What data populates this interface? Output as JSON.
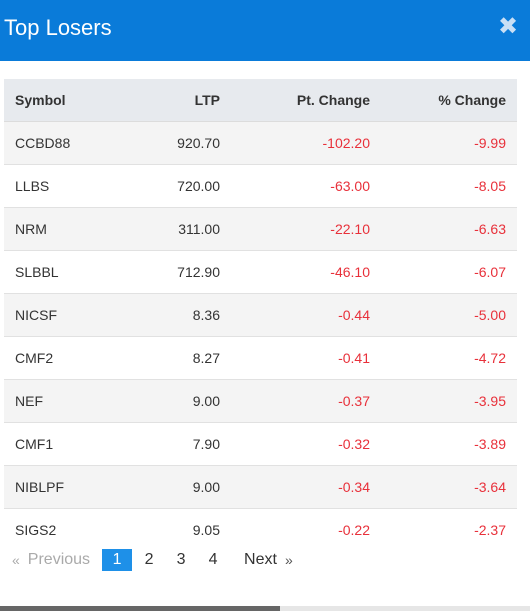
{
  "modal": {
    "title": "Top Losers",
    "close_label": "✖"
  },
  "table": {
    "headers": [
      "Symbol",
      "LTP",
      "Pt. Change",
      "% Change"
    ],
    "rows": [
      {
        "symbol": "CCBD88",
        "ltp": "920.70",
        "pt_change": "-102.20",
        "pct_change": "-9.99"
      },
      {
        "symbol": "LLBS",
        "ltp": "720.00",
        "pt_change": "-63.00",
        "pct_change": "-8.05"
      },
      {
        "symbol": "NRM",
        "ltp": "311.00",
        "pt_change": "-22.10",
        "pct_change": "-6.63"
      },
      {
        "symbol": "SLBBL",
        "ltp": "712.90",
        "pt_change": "-46.10",
        "pct_change": "-6.07"
      },
      {
        "symbol": "NICSF",
        "ltp": "8.36",
        "pt_change": "-0.44",
        "pct_change": "-5.00"
      },
      {
        "symbol": "CMF2",
        "ltp": "8.27",
        "pt_change": "-0.41",
        "pct_change": "-4.72"
      },
      {
        "symbol": "NEF",
        "ltp": "9.00",
        "pt_change": "-0.37",
        "pct_change": "-3.95"
      },
      {
        "symbol": "CMF1",
        "ltp": "7.90",
        "pt_change": "-0.32",
        "pct_change": "-3.89"
      },
      {
        "symbol": "NIBLPF",
        "ltp": "9.00",
        "pt_change": "-0.34",
        "pct_change": "-3.64"
      },
      {
        "symbol": "SIGS2",
        "ltp": "9.05",
        "pt_change": "-0.22",
        "pct_change": "-2.37"
      }
    ]
  },
  "pagination": {
    "prev_arrow": "«",
    "prev_label": "Previous",
    "pages": [
      "1",
      "2",
      "3",
      "4"
    ],
    "active_page": "1",
    "next_label": "Next",
    "next_arrow": "»"
  },
  "colors": {
    "header_bg": "#0a7bd9",
    "negative": "#e8303a",
    "active_page": "#1e90e8"
  }
}
